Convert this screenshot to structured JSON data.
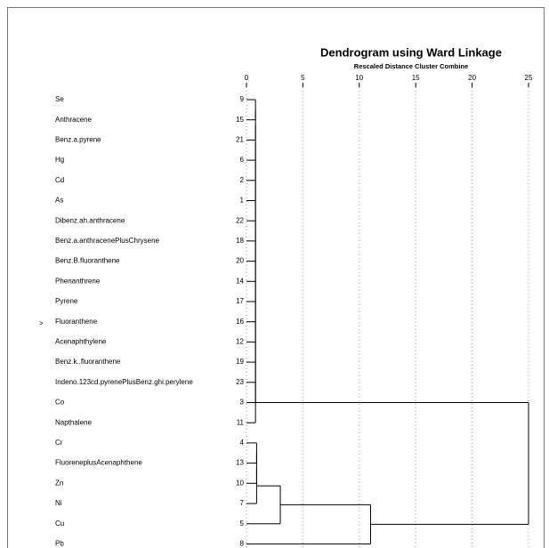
{
  "chart_data": {
    "type": "dendrogram",
    "title": "Dendrogram using Ward Linkage",
    "subtitle": "Rescaled Distance Cluster Combine",
    "marker": ">",
    "labels": [
      "Se",
      "Anthracene",
      "Benz.a.pyrene",
      "Hg",
      "Cd",
      "As",
      "Dibenz.ah.anthracene",
      "Benz.a.anthracenePlusChrysene",
      "Benz.B.fluoranthene",
      "Phenanthrene",
      "Pyrene",
      "Fluoranthene",
      "Acenaphthylene",
      "Benz.k..fluoranthene",
      "Indeno.123cd.pyrenePlusBenz.ghi.perylene",
      "Co",
      "Napthalene",
      "Cr",
      "FluoreneplusAcenaphthene",
      "Zn",
      "Ni",
      "Cu",
      "Pb"
    ],
    "case_numbers": [
      9,
      15,
      21,
      6,
      2,
      1,
      22,
      18,
      20,
      14,
      17,
      16,
      12,
      19,
      23,
      3,
      11,
      4,
      13,
      10,
      7,
      5,
      8
    ],
    "merges": [
      [
        0,
        1,
        0.8
      ],
      [
        23,
        2,
        0.8
      ],
      [
        24,
        3,
        0.8
      ],
      [
        25,
        4,
        0.8
      ],
      [
        26,
        5,
        0.8
      ],
      [
        27,
        6,
        0.8
      ],
      [
        28,
        7,
        0.8
      ],
      [
        29,
        8,
        0.8
      ],
      [
        30,
        9,
        0.8
      ],
      [
        31,
        10,
        0.8
      ],
      [
        32,
        11,
        0.8
      ],
      [
        33,
        12,
        0.8
      ],
      [
        34,
        13,
        0.8
      ],
      [
        35,
        14,
        0.8
      ],
      [
        36,
        15,
        0.8
      ],
      [
        37,
        16,
        0.8
      ],
      [
        17,
        18,
        0.9
      ],
      [
        39,
        19,
        0.9
      ],
      [
        40,
        20,
        0.9
      ],
      [
        41,
        21,
        3
      ],
      [
        42,
        22,
        11
      ],
      [
        38,
        43,
        25
      ]
    ],
    "xlim": [
      0,
      25
    ],
    "xticks": [
      0,
      5,
      10,
      15,
      20,
      25
    ],
    "grid": true,
    "color": "#000000"
  }
}
